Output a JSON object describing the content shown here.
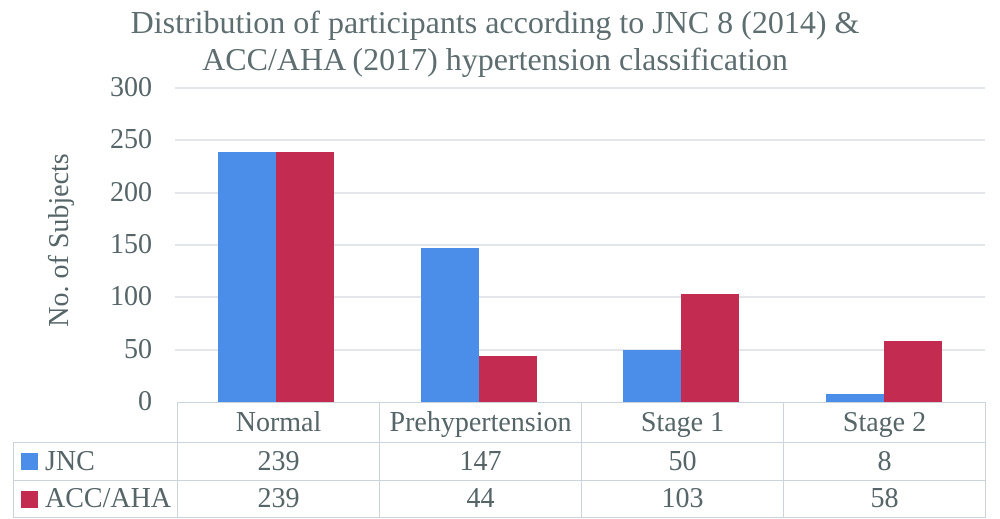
{
  "title": {
    "line1": "Distribution of participants according to JNC 8 (2014) &",
    "line2": "ACC/AHA (2017) hypertension classification"
  },
  "chart_data": {
    "type": "bar",
    "title": "Distribution of participants according to JNC 8 (2014) & ACC/AHA (2017) hypertension classification",
    "categories": [
      "Normal",
      "Prehypertension",
      "Stage 1",
      "Stage 2"
    ],
    "series": [
      {
        "name": "JNC",
        "color": "#4a8ee9",
        "values": [
          239,
          147,
          50,
          8
        ]
      },
      {
        "name": "ACC/AHA",
        "color": "#c32c50",
        "values": [
          239,
          44,
          103,
          58
        ]
      }
    ],
    "xlabel": "",
    "ylabel": "No. of Subjects",
    "ylim": [
      0,
      300
    ],
    "yticks": [
      0,
      50,
      100,
      150,
      200,
      250,
      300
    ],
    "grid": true,
    "legend_position": "bottom-data-table"
  },
  "colors": {
    "jnc_blue": "#4a8ee9",
    "acc_aha_red": "#c32c50",
    "text": "#566568",
    "title_text": "#5e6e70",
    "gridline": "#e3e7ea",
    "table_border": "#ccd4db",
    "background": "#ffffff"
  }
}
